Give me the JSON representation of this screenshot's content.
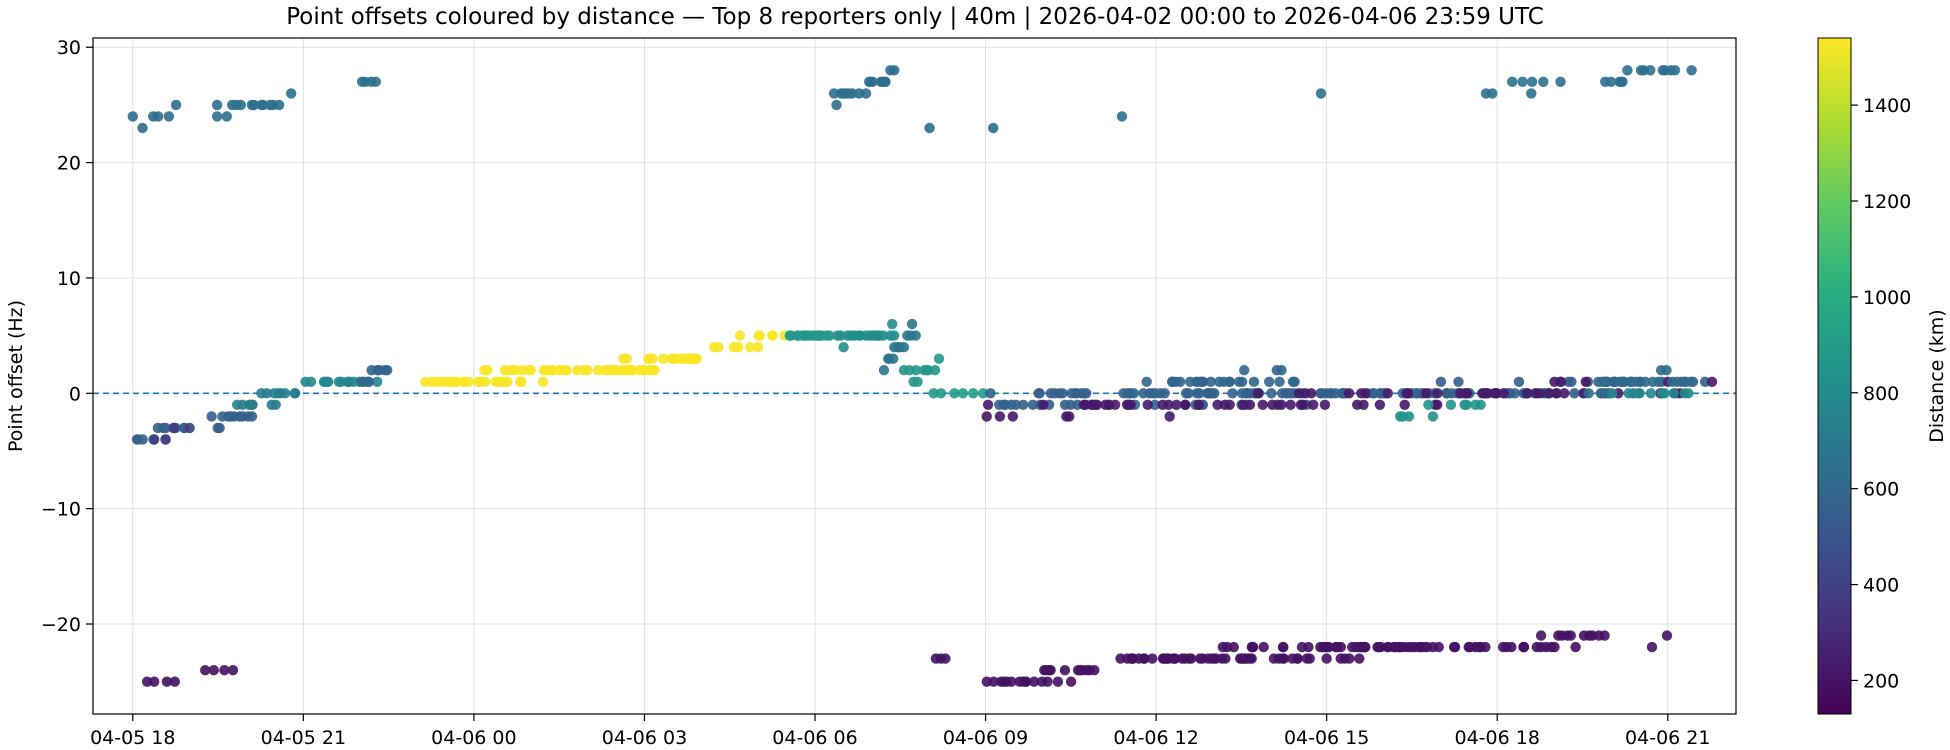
{
  "chart_data": {
    "type": "scatter",
    "title": "Point offsets coloured by distance — Top 8 reporters only | 40m | 2026-04-02 00:00 to 2026-04-06 23:59 UTC",
    "xlabel": "",
    "ylabel": "Point offset (Hz)",
    "x_ticks": [
      "04-05 18",
      "04-05 21",
      "04-06 00",
      "04-06 03",
      "04-06 06",
      "04-06 09",
      "04-06 12",
      "04-06 15",
      "04-06 18",
      "04-06 21"
    ],
    "x_tick_hours": [
      18,
      21,
      24,
      27,
      30,
      33,
      36,
      39,
      42,
      45
    ],
    "xlim_hours": [
      17.3,
      46.2
    ],
    "x_unit": "hours since 04-05 00:00 UTC",
    "y_ticks": [
      "30",
      "20",
      "10",
      "0",
      "−10",
      "−20"
    ],
    "y_tick_values": [
      30,
      20,
      10,
      0,
      -10,
      -20
    ],
    "ylim": [
      -27.8,
      30.8
    ],
    "reference_line": {
      "y": 0,
      "style": "dashed",
      "color": "#1f77b4"
    },
    "grid": true,
    "colorbar": {
      "label": "Distance (km)",
      "ticks": [
        "1400",
        "1200",
        "1000",
        "800",
        "600",
        "400",
        "200"
      ],
      "tick_values": [
        1400,
        1200,
        1000,
        800,
        600,
        400,
        200
      ],
      "range": [
        130,
        1540
      ],
      "colormap": "viridis"
    },
    "clusters": [
      {
        "x": [
          18.0,
          18.8
        ],
        "y": [
          23,
          25
        ],
        "dist": 620,
        "n": 6
      },
      {
        "x": [
          19.3,
          20.8
        ],
        "y": [
          24,
          26
        ],
        "dist": 640,
        "n": 14
      },
      {
        "x": [
          22.0,
          22.3
        ],
        "y": [
          27,
          27
        ],
        "dist": 660,
        "n": 4
      },
      {
        "x": [
          30.2,
          31.5
        ],
        "y": [
          25,
          28
        ],
        "dist": 640,
        "n": 18
      },
      {
        "x": [
          32.0,
          33.3
        ],
        "y": [
          23,
          23
        ],
        "dist": 630,
        "n": 2
      },
      {
        "x": [
          35.4,
          35.4
        ],
        "y": [
          24,
          24
        ],
        "dist": 650,
        "n": 1
      },
      {
        "x": [
          38.9,
          38.9
        ],
        "y": [
          26,
          26
        ],
        "dist": 650,
        "n": 1
      },
      {
        "x": [
          41.7,
          43.2
        ],
        "y": [
          26,
          27
        ],
        "dist": 660,
        "n": 8
      },
      {
        "x": [
          43.7,
          45.5
        ],
        "y": [
          27,
          28
        ],
        "dist": 650,
        "n": 14
      },
      {
        "x": [
          18.0,
          19.0
        ],
        "y": [
          -4,
          -3
        ],
        "dist": 560,
        "n": 12
      },
      {
        "x": [
          18.3,
          19.0
        ],
        "y": [
          -4,
          -3
        ],
        "dist": 380,
        "n": 4
      },
      {
        "x": [
          19.3,
          20.2
        ],
        "y": [
          -3,
          -1
        ],
        "dist": 560,
        "n": 12
      },
      {
        "x": [
          19.8,
          21.0
        ],
        "y": [
          -1,
          0
        ],
        "dist": 720,
        "n": 14
      },
      {
        "x": [
          21.0,
          22.3
        ],
        "y": [
          1,
          1
        ],
        "dist": 780,
        "n": 14
      },
      {
        "x": [
          22.0,
          22.5
        ],
        "y": [
          1,
          2
        ],
        "dist": 600,
        "n": 8
      },
      {
        "x": [
          23.0,
          25.8
        ],
        "y": [
          1,
          2
        ],
        "dist": 1530,
        "n": 40
      },
      {
        "x": [
          25.8,
          28.2
        ],
        "y": [
          2,
          3
        ],
        "dist": 1530,
        "n": 40
      },
      {
        "x": [
          28.2,
          29.5
        ],
        "y": [
          4,
          5
        ],
        "dist": 1530,
        "n": 12
      },
      {
        "x": [
          29.5,
          30.3
        ],
        "y": [
          5,
          5
        ],
        "dist": 880,
        "n": 16
      },
      {
        "x": [
          30.3,
          31.5
        ],
        "y": [
          4,
          6
        ],
        "dist": 820,
        "n": 18
      },
      {
        "x": [
          31.2,
          31.8
        ],
        "y": [
          2,
          6
        ],
        "dist": 680,
        "n": 12
      },
      {
        "x": [
          31.5,
          32.2
        ],
        "y": [
          1,
          3
        ],
        "dist": 880,
        "n": 10
      },
      {
        "x": [
          32.0,
          33.0
        ],
        "y": [
          0,
          0
        ],
        "dist": 900,
        "n": 6
      },
      {
        "x": [
          32.2,
          46.0
        ],
        "y": [
          -1,
          1
        ],
        "dist": 560,
        "n": 150
      },
      {
        "x": [
          32.6,
          46.0
        ],
        "y": [
          -2,
          1
        ],
        "dist": 230,
        "n": 90
      },
      {
        "x": [
          35.5,
          38.5
        ],
        "y": [
          0,
          2
        ],
        "dist": 600,
        "n": 30
      },
      {
        "x": [
          40.0,
          42.0
        ],
        "y": [
          -2,
          -1
        ],
        "dist": 850,
        "n": 10
      },
      {
        "x": [
          43.5,
          45.5
        ],
        "y": [
          0,
          2
        ],
        "dist": 620,
        "n": 20
      },
      {
        "x": [
          44.0,
          45.5
        ],
        "y": [
          0,
          0
        ],
        "dist": 780,
        "n": 10
      },
      {
        "x": [
          18.2,
          18.8
        ],
        "y": [
          -25,
          -25
        ],
        "dist": 200,
        "n": 4
      },
      {
        "x": [
          19.2,
          19.8
        ],
        "y": [
          -24,
          -24
        ],
        "dist": 200,
        "n": 4
      },
      {
        "x": [
          32.1,
          32.3
        ],
        "y": [
          -23,
          -23
        ],
        "dist": 200,
        "n": 3
      },
      {
        "x": [
          33.0,
          35.0
        ],
        "y": [
          -25,
          -24
        ],
        "dist": 200,
        "n": 26
      },
      {
        "x": [
          35.0,
          42.0
        ],
        "y": [
          -23,
          -22
        ],
        "dist": 200,
        "n": 110
      },
      {
        "x": [
          42.0,
          44.0
        ],
        "y": [
          -22,
          -21
        ],
        "dist": 200,
        "n": 22
      },
      {
        "x": [
          44.7,
          45.0
        ],
        "y": [
          -22,
          -21
        ],
        "dist": 200,
        "n": 2
      }
    ]
  }
}
